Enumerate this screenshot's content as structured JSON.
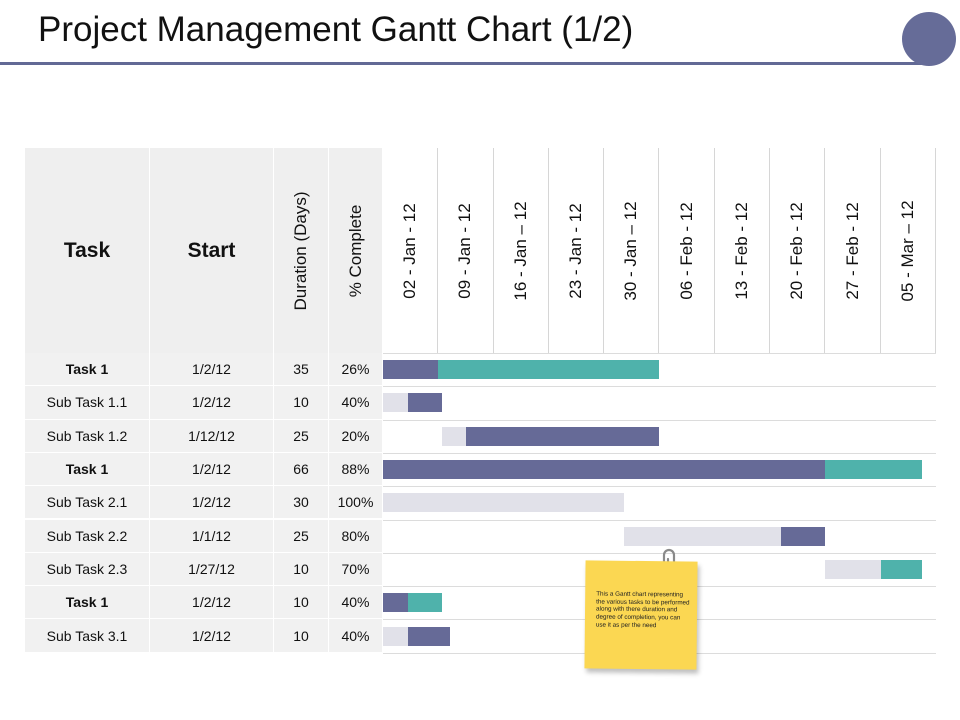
{
  "title": "Project Management Gantt Chart (1/2)",
  "colors": {
    "done": "#666a97",
    "remaining": "#4fb2ab",
    "background": "#e1e1e9",
    "accent": "#626995",
    "note": "#fbd752"
  },
  "table": {
    "headers": {
      "task": "Task",
      "start": "Start",
      "duration": "Duration (Days)",
      "complete": "% Complete"
    },
    "dates": [
      "02 - Jan - 12",
      "09 - Jan - 12",
      "16 - Jan – 12",
      "23 - Jan - 12",
      "30 - Jan – 12",
      "06 - Feb - 12",
      "13 - Feb - 12",
      "20 - Feb - 12",
      "27 - Feb - 12",
      "05 - Mar – 12"
    ]
  },
  "chart_data": {
    "type": "table",
    "rows": [
      {
        "task": "Task 1",
        "bold": true,
        "start": "1/2/12",
        "duration": "35",
        "complete": "26%",
        "bars": [
          {
            "type": "done",
            "from": 0,
            "to": 1
          },
          {
            "type": "remaining",
            "from": 1,
            "to": 5
          }
        ]
      },
      {
        "task": "Sub Task 1.1",
        "bold": false,
        "start": "1/2/12",
        "duration": "10",
        "complete": "40%",
        "bars": [
          {
            "type": "background",
            "from": 0,
            "to": 0.45
          },
          {
            "type": "done",
            "from": 0.45,
            "to": 1.07
          }
        ]
      },
      {
        "task": "Sub Task 1.2",
        "bold": false,
        "start": "1/12/12",
        "duration": "25",
        "complete": "20%",
        "bars": [
          {
            "type": "background",
            "from": 1.07,
            "to": 1.5
          },
          {
            "type": "done",
            "from": 1.5,
            "to": 5
          }
        ]
      },
      {
        "task": "Task 1",
        "bold": true,
        "start": "1/2/12",
        "duration": "66",
        "complete": "88%",
        "bars": [
          {
            "type": "done",
            "from": 0,
            "to": 8
          },
          {
            "type": "remaining",
            "from": 8,
            "to": 9.75
          }
        ]
      },
      {
        "task": "Sub Task 2.1",
        "bold": false,
        "start": "1/2/12",
        "duration": "30",
        "complete": "100%",
        "bars": [
          {
            "type": "background",
            "from": 0,
            "to": 4.35
          }
        ]
      },
      {
        "task": "Sub Task 2.2",
        "bold": false,
        "start": "1/1/12",
        "duration": "25",
        "complete": "80%",
        "bars": [
          {
            "type": "background",
            "from": 4.35,
            "to": 7.2
          },
          {
            "type": "done",
            "from": 7.2,
            "to": 8
          }
        ]
      },
      {
        "task": "Sub Task 2.3",
        "bold": false,
        "start": "1/27/12",
        "duration": "10",
        "complete": "70%",
        "bars": [
          {
            "type": "background",
            "from": 8,
            "to": 9
          },
          {
            "type": "remaining",
            "from": 9,
            "to": 9.75
          }
        ]
      },
      {
        "task": "Task 1",
        "bold": true,
        "start": "1/2/12",
        "duration": "10",
        "complete": "40%",
        "bars": [
          {
            "type": "done",
            "from": 0,
            "to": 0.45
          },
          {
            "type": "remaining",
            "from": 0.45,
            "to": 1.07
          }
        ]
      },
      {
        "task": "Sub Task 3.1",
        "bold": false,
        "start": "1/2/12",
        "duration": "10",
        "complete": "40%",
        "bars": [
          {
            "type": "background",
            "from": 0,
            "to": 0.45
          },
          {
            "type": "done",
            "from": 0.45,
            "to": 1.22
          }
        ]
      }
    ]
  },
  "note": {
    "text": "This a Gantt chart representing the various tasks to be performed along with there duration and degree of completion, you can use it as per the need"
  },
  "icons": {
    "corner": "circle-icon",
    "clip": "paperclip-icon"
  }
}
